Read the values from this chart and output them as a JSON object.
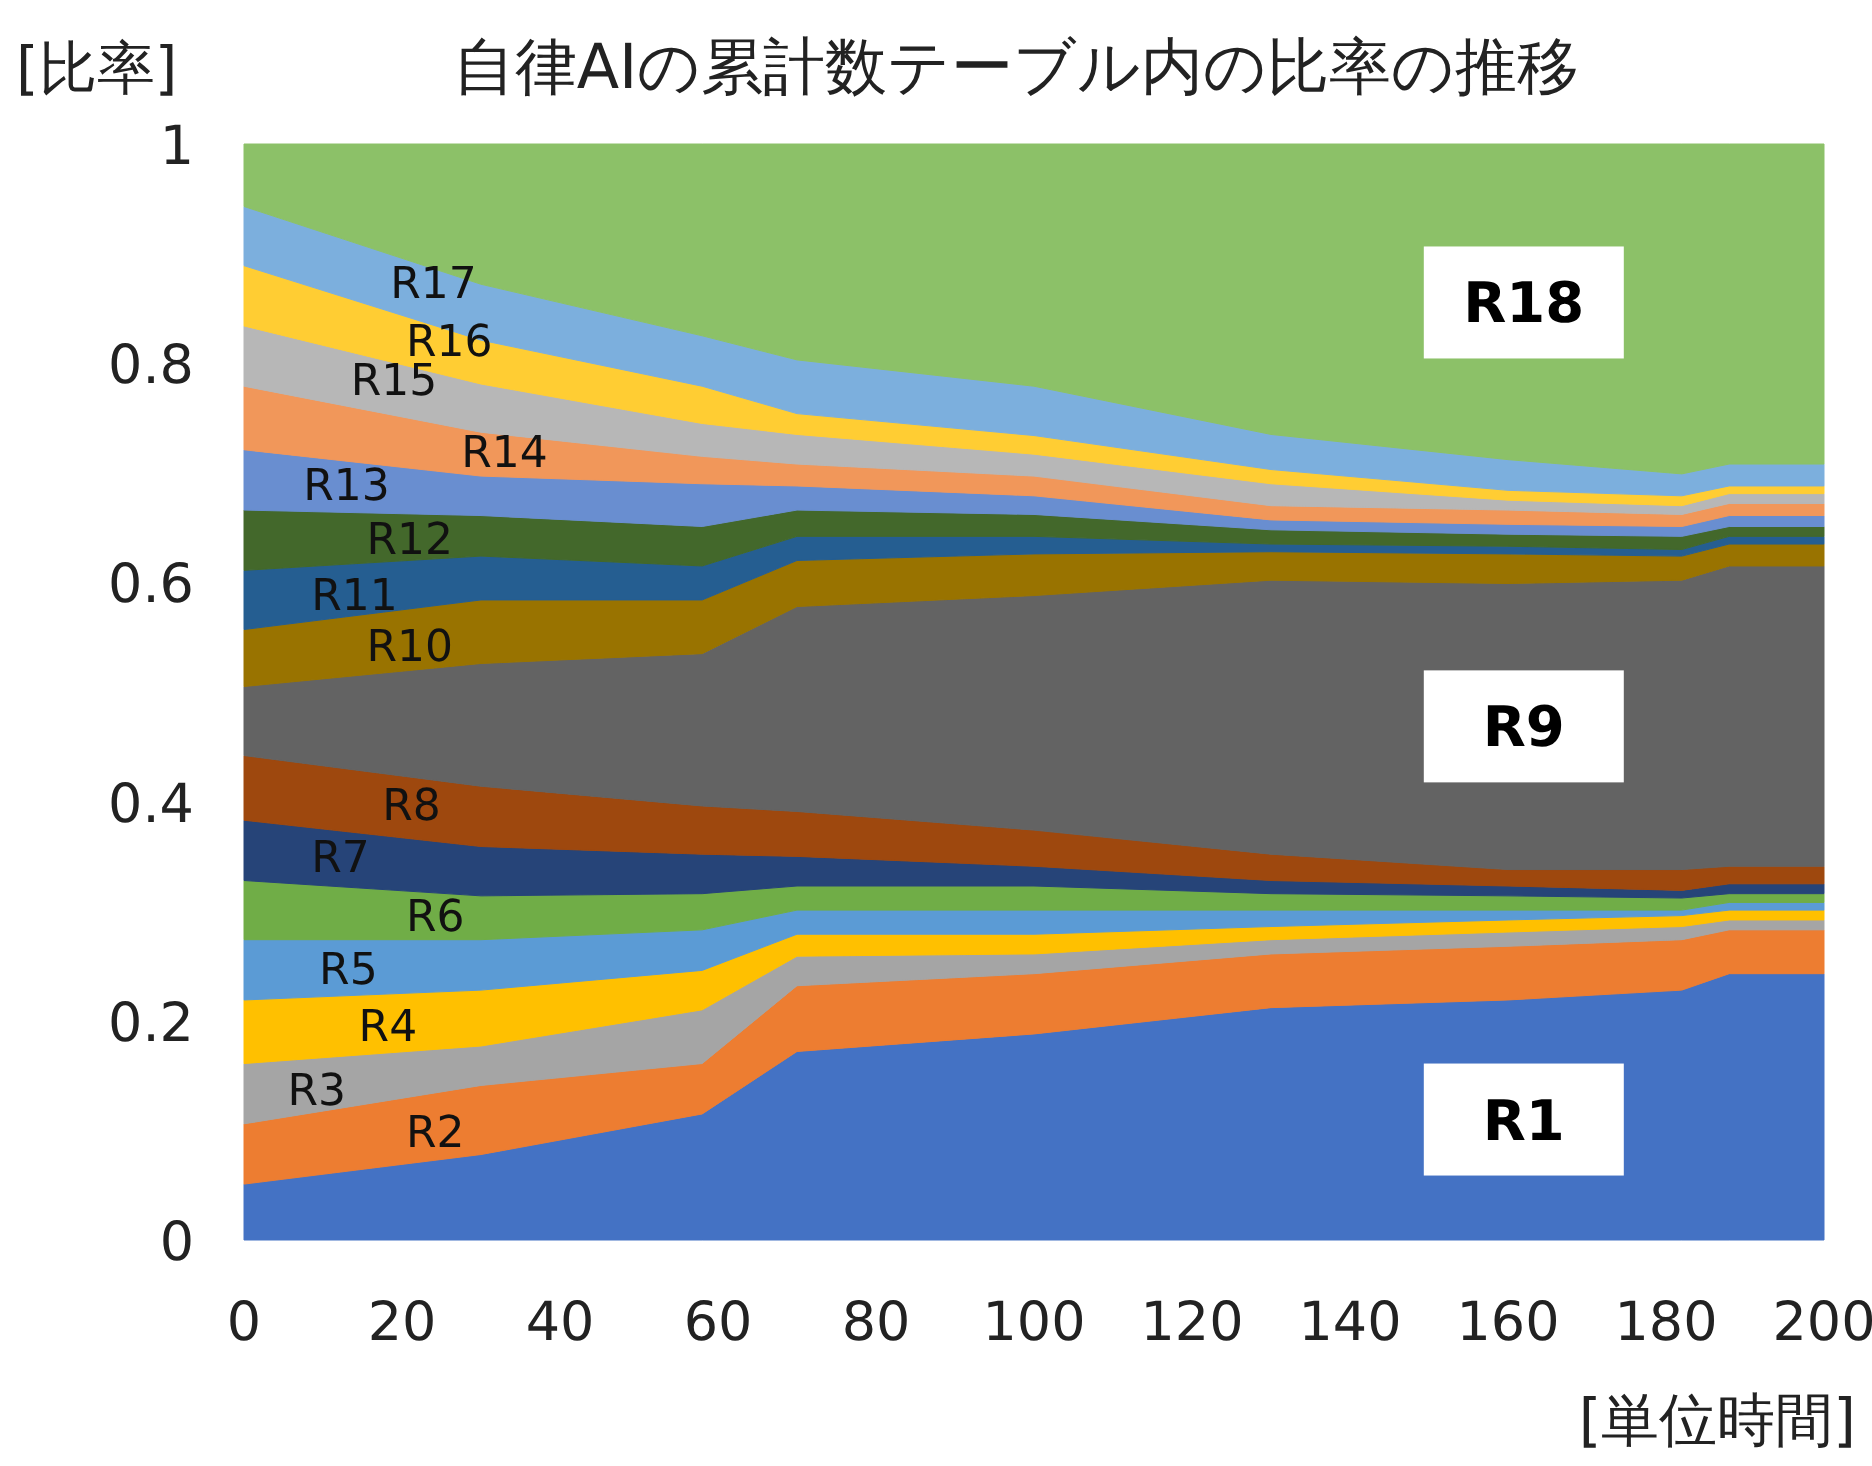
{
  "chart_data": {
    "type": "area",
    "stacked": true,
    "title": "自律AIの累計数テーブル内の比率の推移",
    "ylabel": "[比率]",
    "xlabel": "[単位時間]",
    "x": [
      0,
      30,
      58,
      70,
      100,
      130,
      160,
      182,
      188,
      200
    ],
    "xlim": [
      0,
      200
    ],
    "ylim": [
      0,
      1
    ],
    "xticks": [
      0,
      20,
      40,
      60,
      80,
      100,
      120,
      140,
      160,
      180,
      200
    ],
    "yticks": [
      0,
      0.2,
      0.4,
      0.6,
      0.8,
      1
    ],
    "series": [
      {
        "name": "R1",
        "color": "#4472c4",
        "values": [
          0.051,
          0.078,
          0.115,
          0.172,
          0.188,
          0.212,
          0.219,
          0.228,
          0.243,
          0.243
        ]
      },
      {
        "name": "R2",
        "color": "#ed7d31",
        "values": [
          0.055,
          0.063,
          0.046,
          0.06,
          0.055,
          0.049,
          0.049,
          0.046,
          0.04,
          0.04
        ]
      },
      {
        "name": "R3",
        "color": "#a5a5a5",
        "values": [
          0.055,
          0.036,
          0.049,
          0.027,
          0.018,
          0.013,
          0.013,
          0.012,
          0.009,
          0.009
        ]
      },
      {
        "name": "R4",
        "color": "#ffc000",
        "values": [
          0.058,
          0.051,
          0.036,
          0.02,
          0.018,
          0.012,
          0.011,
          0.01,
          0.009,
          0.009
        ]
      },
      {
        "name": "R5",
        "color": "#5b9bd5",
        "values": [
          0.055,
          0.046,
          0.037,
          0.022,
          0.022,
          0.015,
          0.009,
          0.005,
          0.007,
          0.007
        ]
      },
      {
        "name": "R6",
        "color": "#70ad47",
        "values": [
          0.054,
          0.04,
          0.033,
          0.022,
          0.022,
          0.015,
          0.013,
          0.011,
          0.008,
          0.008
        ]
      },
      {
        "name": "R7",
        "color": "#264478",
        "values": [
          0.055,
          0.045,
          0.036,
          0.027,
          0.018,
          0.012,
          0.009,
          0.007,
          0.009,
          0.009
        ]
      },
      {
        "name": "R8",
        "color": "#9e480e",
        "values": [
          0.059,
          0.055,
          0.044,
          0.041,
          0.033,
          0.024,
          0.015,
          0.019,
          0.016,
          0.016
        ]
      },
      {
        "name": "R9",
        "color": "#636363",
        "values": [
          0.063,
          0.112,
          0.139,
          0.187,
          0.214,
          0.25,
          0.261,
          0.264,
          0.274,
          0.274
        ]
      },
      {
        "name": "R10",
        "color": "#997300",
        "values": [
          0.052,
          0.058,
          0.049,
          0.042,
          0.038,
          0.026,
          0.027,
          0.022,
          0.02,
          0.02
        ]
      },
      {
        "name": "R11",
        "color": "#255e91",
        "values": [
          0.054,
          0.04,
          0.031,
          0.022,
          0.016,
          0.007,
          0.007,
          0.006,
          0.007,
          0.007
        ]
      },
      {
        "name": "R12",
        "color": "#43682b",
        "values": [
          0.055,
          0.037,
          0.036,
          0.024,
          0.02,
          0.013,
          0.011,
          0.012,
          0.009,
          0.009
        ]
      },
      {
        "name": "R13",
        "color": "#698ed0",
        "values": [
          0.055,
          0.036,
          0.039,
          0.022,
          0.017,
          0.009,
          0.009,
          0.009,
          0.01,
          0.01
        ]
      },
      {
        "name": "R14",
        "color": "#f1975a",
        "values": [
          0.058,
          0.04,
          0.025,
          0.02,
          0.018,
          0.013,
          0.013,
          0.011,
          0.011,
          0.011
        ]
      },
      {
        "name": "R15",
        "color": "#b7b7b7",
        "values": [
          0.055,
          0.044,
          0.03,
          0.027,
          0.02,
          0.02,
          0.009,
          0.008,
          0.009,
          0.009
        ]
      },
      {
        "name": "R16",
        "color": "#ffcd33",
        "values": [
          0.055,
          0.04,
          0.034,
          0.019,
          0.017,
          0.013,
          0.009,
          0.009,
          0.007,
          0.007
        ]
      },
      {
        "name": "R17",
        "color": "#7cafdd",
        "values": [
          0.054,
          0.051,
          0.046,
          0.049,
          0.045,
          0.032,
          0.028,
          0.02,
          0.02,
          0.02
        ]
      },
      {
        "name": "R18",
        "color": "#8cc168",
        "values": [
          0.057,
          0.128,
          0.175,
          0.197,
          0.221,
          0.265,
          0.288,
          0.301,
          0.292,
          0.292
        ]
      }
    ]
  }
}
